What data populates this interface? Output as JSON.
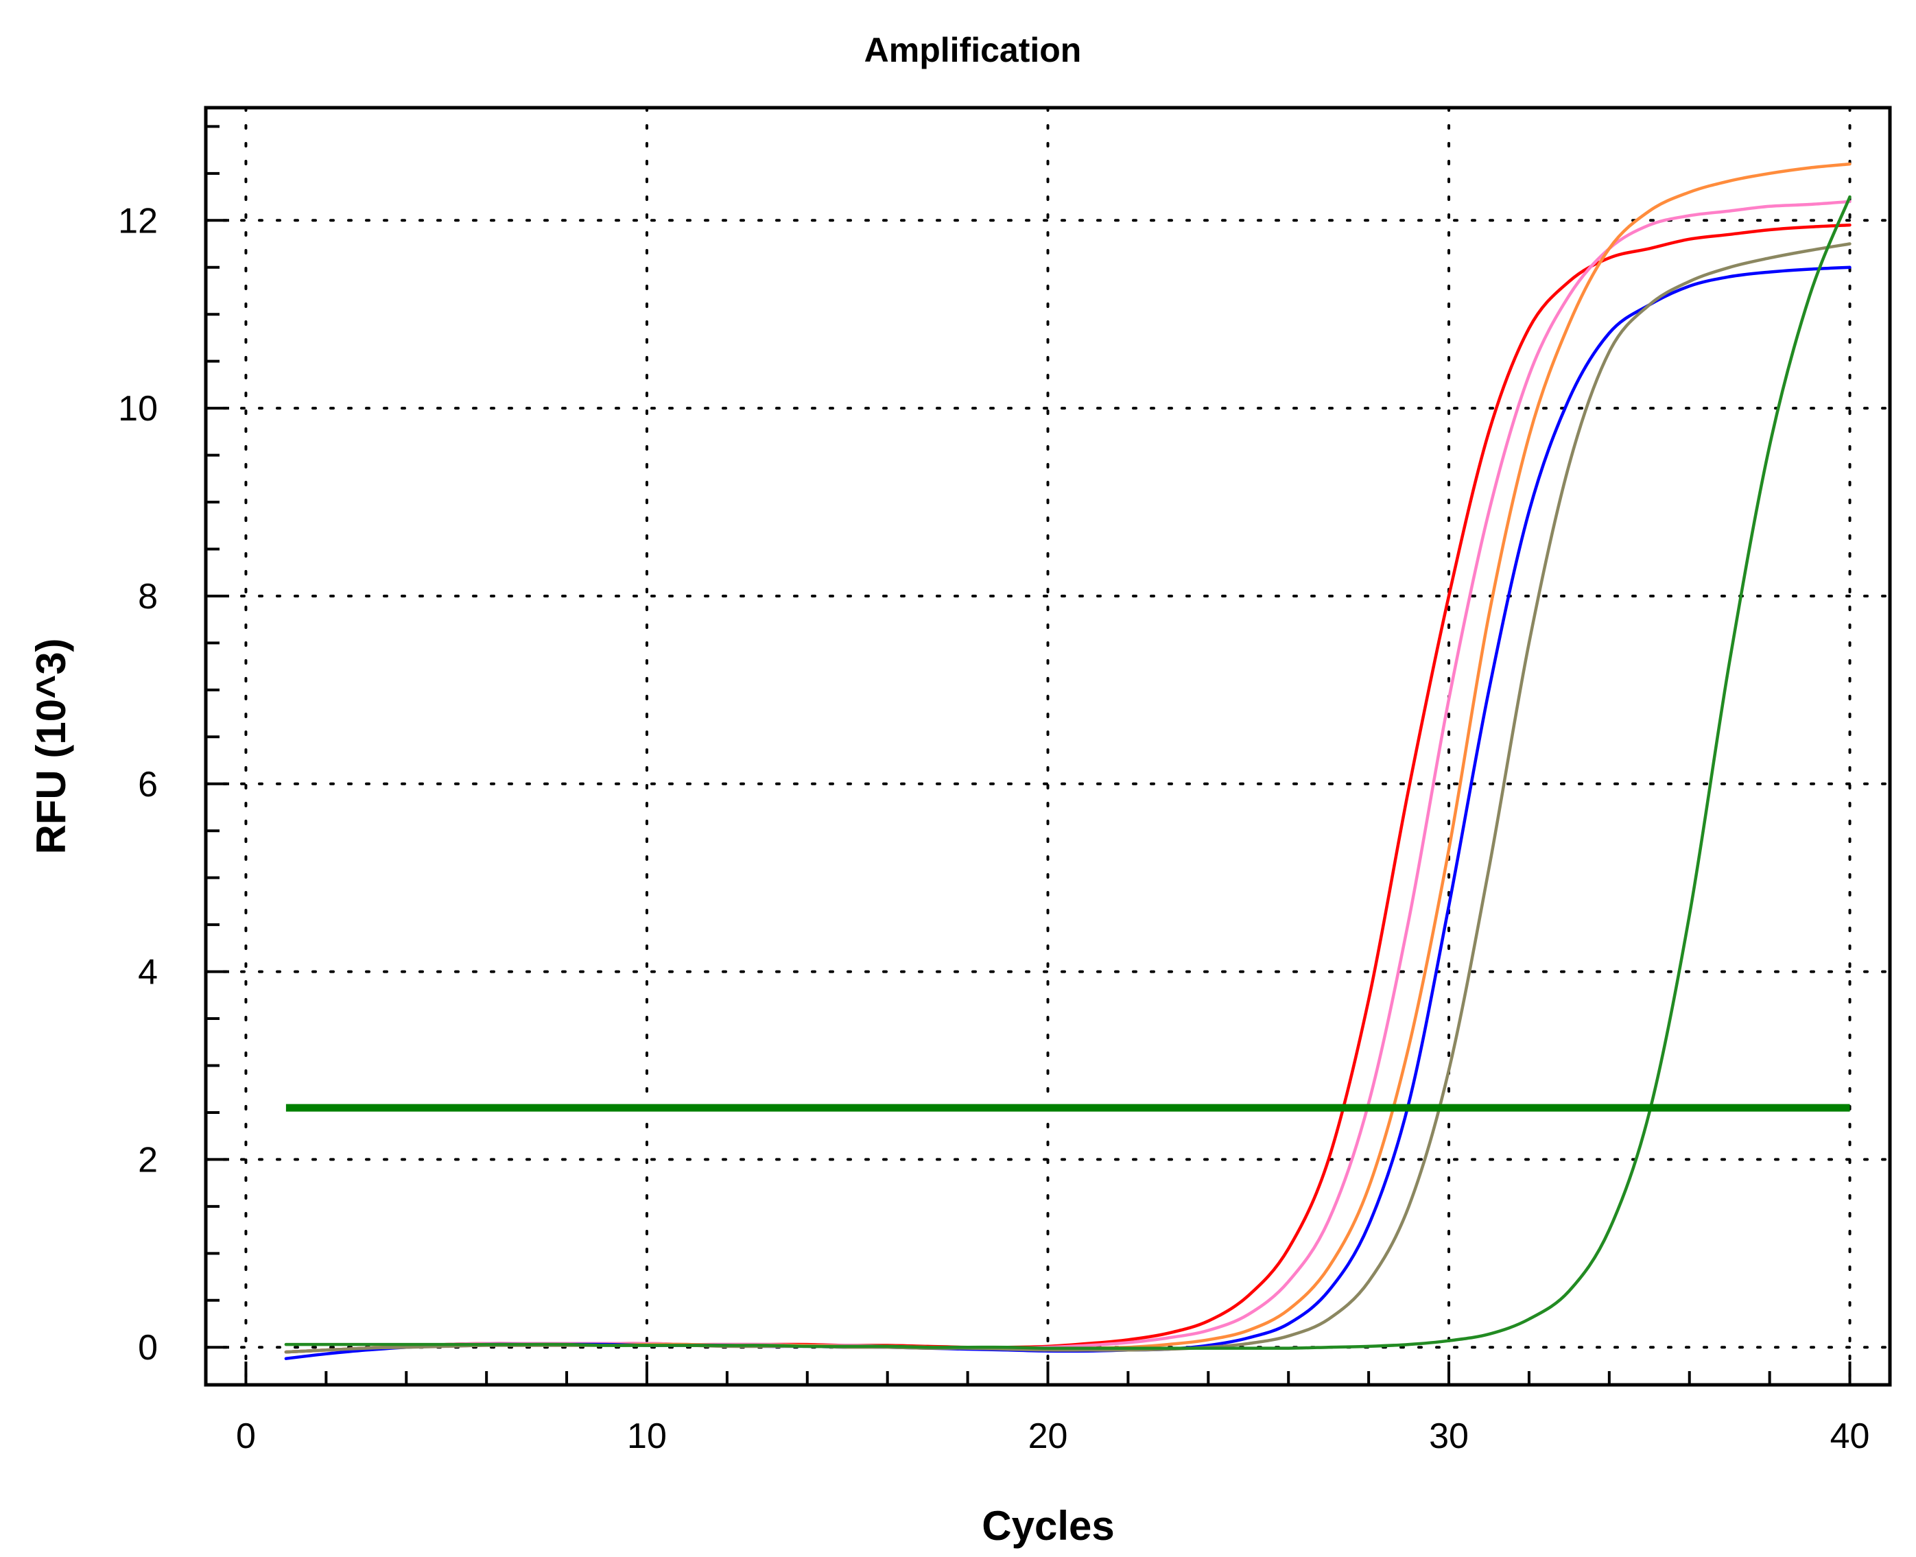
{
  "chart_data": {
    "type": "line",
    "title": "Amplification",
    "xlabel": "Cycles",
    "ylabel": "RFU (10^3)",
    "xlim": [
      -1,
      41
    ],
    "ylim": [
      -0.4,
      13.2
    ],
    "xticks": [
      0,
      10,
      20,
      30,
      40
    ],
    "yticks": [
      0,
      2,
      4,
      6,
      8,
      10,
      12
    ],
    "grid": true,
    "legend": "none",
    "threshold": {
      "y": 2.55,
      "x_start": 1,
      "x_end": 40,
      "color": "#008000"
    },
    "series": [
      {
        "color": "#ff0000",
        "values": [
          -0.05,
          -0.03,
          -0.01,
          0.01,
          0.03,
          0.04,
          0.04,
          0.04,
          0.04,
          0.04,
          0.03,
          0.03,
          0.03,
          0.03,
          0.02,
          0.02,
          0.01,
          0.0,
          0.0,
          0.01,
          0.04,
          0.08,
          0.15,
          0.28,
          0.55,
          1.05,
          2.0,
          3.7,
          5.95,
          8.0,
          9.75,
          10.85,
          11.35,
          11.6,
          11.7,
          11.8,
          11.85,
          11.9,
          11.93,
          11.95
        ]
      },
      {
        "color": "#ff7fc8",
        "values": [
          -0.05,
          -0.03,
          -0.01,
          0.01,
          0.03,
          0.04,
          0.04,
          0.04,
          0.04,
          0.04,
          0.03,
          0.03,
          0.03,
          0.02,
          0.02,
          0.01,
          0.0,
          -0.01,
          -0.01,
          0.0,
          0.02,
          0.05,
          0.1,
          0.18,
          0.35,
          0.7,
          1.35,
          2.6,
          4.55,
          6.9,
          8.9,
          10.35,
          11.2,
          11.7,
          11.95,
          12.05,
          12.1,
          12.15,
          12.17,
          12.2
        ]
      },
      {
        "color": "#ff8c3c",
        "values": [
          -0.05,
          -0.03,
          -0.01,
          0.01,
          0.02,
          0.03,
          0.03,
          0.03,
          0.03,
          0.03,
          0.03,
          0.02,
          0.02,
          0.02,
          0.01,
          0.01,
          0.0,
          -0.01,
          -0.02,
          -0.02,
          -0.01,
          0.0,
          0.03,
          0.08,
          0.18,
          0.4,
          0.85,
          1.7,
          3.2,
          5.3,
          7.8,
          9.7,
          10.9,
          11.7,
          12.1,
          12.3,
          12.42,
          12.5,
          12.56,
          12.6
        ]
      },
      {
        "color": "#0000ff",
        "values": [
          -0.12,
          -0.07,
          -0.03,
          0.0,
          0.02,
          0.03,
          0.03,
          0.03,
          0.03,
          0.02,
          0.02,
          0.02,
          0.01,
          0.01,
          0.0,
          0.0,
          -0.01,
          -0.02,
          -0.03,
          -0.04,
          -0.04,
          -0.03,
          -0.02,
          0.02,
          0.1,
          0.25,
          0.6,
          1.3,
          2.6,
          4.7,
          7.0,
          8.9,
          10.1,
          10.8,
          11.1,
          11.3,
          11.4,
          11.45,
          11.48,
          11.5
        ]
      },
      {
        "color": "#8b8760",
        "values": [
          -0.05,
          -0.03,
          -0.01,
          0.0,
          0.01,
          0.02,
          0.02,
          0.02,
          0.02,
          0.02,
          0.02,
          0.01,
          0.01,
          0.01,
          0.0,
          0.0,
          -0.01,
          -0.01,
          -0.02,
          -0.03,
          -0.03,
          -0.03,
          -0.02,
          0.0,
          0.04,
          0.12,
          0.3,
          0.7,
          1.5,
          2.95,
          5.1,
          7.5,
          9.4,
          10.6,
          11.1,
          11.35,
          11.5,
          11.6,
          11.68,
          11.75
        ]
      },
      {
        "color": "#228b22",
        "values": [
          0.03,
          0.03,
          0.03,
          0.03,
          0.03,
          0.03,
          0.03,
          0.03,
          0.02,
          0.02,
          0.02,
          0.02,
          0.02,
          0.01,
          0.01,
          0.01,
          0.0,
          0.0,
          0.0,
          -0.01,
          -0.01,
          -0.01,
          -0.01,
          -0.01,
          -0.01,
          -0.01,
          0.0,
          0.01,
          0.03,
          0.07,
          0.14,
          0.3,
          0.6,
          1.25,
          2.5,
          4.6,
          7.3,
          9.6,
          11.2,
          12.25
        ]
      }
    ]
  }
}
